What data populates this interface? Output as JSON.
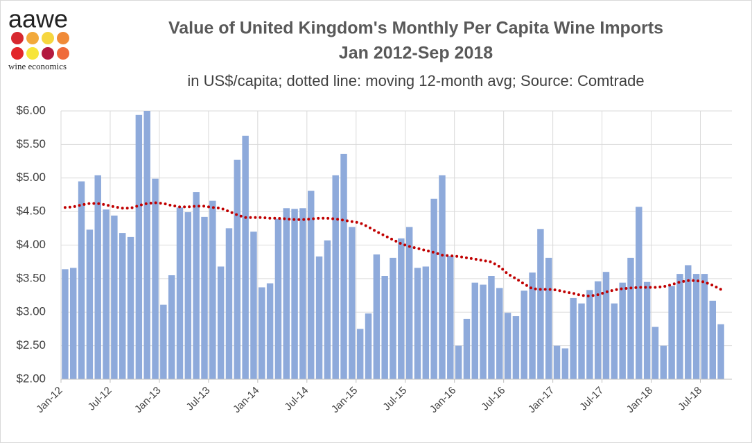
{
  "logo": {
    "name": "aawe",
    "tagline": "wine economics"
  },
  "chart_data": {
    "type": "bar",
    "title": [
      "Value of United Kingdom's Monthly Per Capita Wine Imports",
      "Jan 2012-Sep 2018"
    ],
    "subtitle": "in US$/capita; dotted line: moving 12-month avg; Source: Comtrade",
    "categories": [
      "Jan-12",
      null,
      null,
      null,
      null,
      null,
      "Jul-12",
      null,
      null,
      null,
      null,
      null,
      "Jan-13",
      null,
      null,
      null,
      null,
      null,
      "Jul-13",
      null,
      null,
      null,
      null,
      null,
      "Jan-14",
      null,
      null,
      null,
      null,
      null,
      "Jul-14",
      null,
      null,
      null,
      null,
      null,
      "Jan-15",
      null,
      null,
      null,
      null,
      null,
      "Jul-15",
      null,
      null,
      null,
      null,
      null,
      "Jan-16",
      null,
      null,
      null,
      null,
      null,
      "Jul-16",
      null,
      null,
      null,
      null,
      null,
      "Jan-17",
      null,
      null,
      null,
      null,
      null,
      "Jul-17",
      null,
      null,
      null,
      null,
      null,
      "Jan-18",
      null,
      null,
      null,
      null,
      null,
      "Jul-18",
      null,
      null
    ],
    "series": [
      {
        "type": "bar",
        "color": "#8eaadb",
        "values": [
          3.64,
          3.66,
          4.95,
          4.23,
          5.04,
          4.53,
          4.44,
          4.18,
          4.12,
          5.94,
          6.0,
          4.99,
          3.11,
          3.55,
          4.56,
          4.49,
          4.79,
          4.42,
          4.66,
          3.68,
          4.25,
          5.27,
          5.63,
          4.2,
          3.37,
          3.43,
          4.39,
          4.55,
          4.54,
          4.55,
          4.81,
          3.83,
          4.07,
          5.04,
          5.36,
          4.27,
          2.75,
          2.98,
          3.86,
          3.54,
          3.81,
          4.1,
          4.27,
          3.66,
          3.68,
          4.69,
          5.04,
          3.84,
          2.5,
          2.9,
          3.44,
          3.41,
          3.54,
          3.36,
          2.99,
          2.94,
          3.32,
          3.59,
          4.24,
          3.81,
          2.5,
          2.46,
          3.21,
          3.13,
          3.33,
          3.46,
          3.6,
          3.13,
          3.44,
          3.81,
          4.57,
          3.45,
          2.78,
          2.5,
          3.39,
          3.57,
          3.7,
          3.57,
          3.57,
          3.17,
          2.82
        ]
      },
      {
        "type": "line",
        "line_style": "dotted",
        "color": "#c00000",
        "values": [
          4.56,
          4.57,
          4.6,
          4.62,
          4.62,
          4.6,
          4.57,
          4.55,
          4.55,
          4.59,
          4.62,
          4.63,
          4.62,
          4.59,
          4.57,
          4.57,
          4.58,
          4.58,
          4.56,
          4.55,
          4.5,
          4.45,
          4.41,
          4.41,
          4.41,
          4.4,
          4.4,
          4.39,
          4.38,
          4.38,
          4.39,
          4.4,
          4.4,
          4.39,
          4.37,
          4.35,
          4.33,
          4.27,
          4.2,
          4.14,
          4.08,
          4.02,
          3.98,
          3.95,
          3.92,
          3.89,
          3.85,
          3.84,
          3.83,
          3.81,
          3.79,
          3.77,
          3.75,
          3.68,
          3.57,
          3.5,
          3.42,
          3.35,
          3.34,
          3.34,
          3.33,
          3.3,
          3.28,
          3.25,
          3.24,
          3.26,
          3.3,
          3.33,
          3.35,
          3.36,
          3.37,
          3.37,
          3.37,
          3.38,
          3.41,
          3.45,
          3.47,
          3.47,
          3.45,
          3.4,
          3.34
        ]
      }
    ],
    "ylim": [
      2,
      6
    ],
    "yticks": [
      {
        "value": 2,
        "label": "$2.00"
      },
      {
        "value": 2.5,
        "label": "$2.50"
      },
      {
        "value": 3,
        "label": "$3.00"
      },
      {
        "value": 3.5,
        "label": "$3.50"
      },
      {
        "value": 4,
        "label": "$4.00"
      },
      {
        "value": 4.5,
        "label": "$4.50"
      },
      {
        "value": 5,
        "label": "$5.00"
      },
      {
        "value": 5.5,
        "label": "$5.50"
      },
      {
        "value": 6,
        "label": "$6.00"
      }
    ],
    "grid": true
  }
}
